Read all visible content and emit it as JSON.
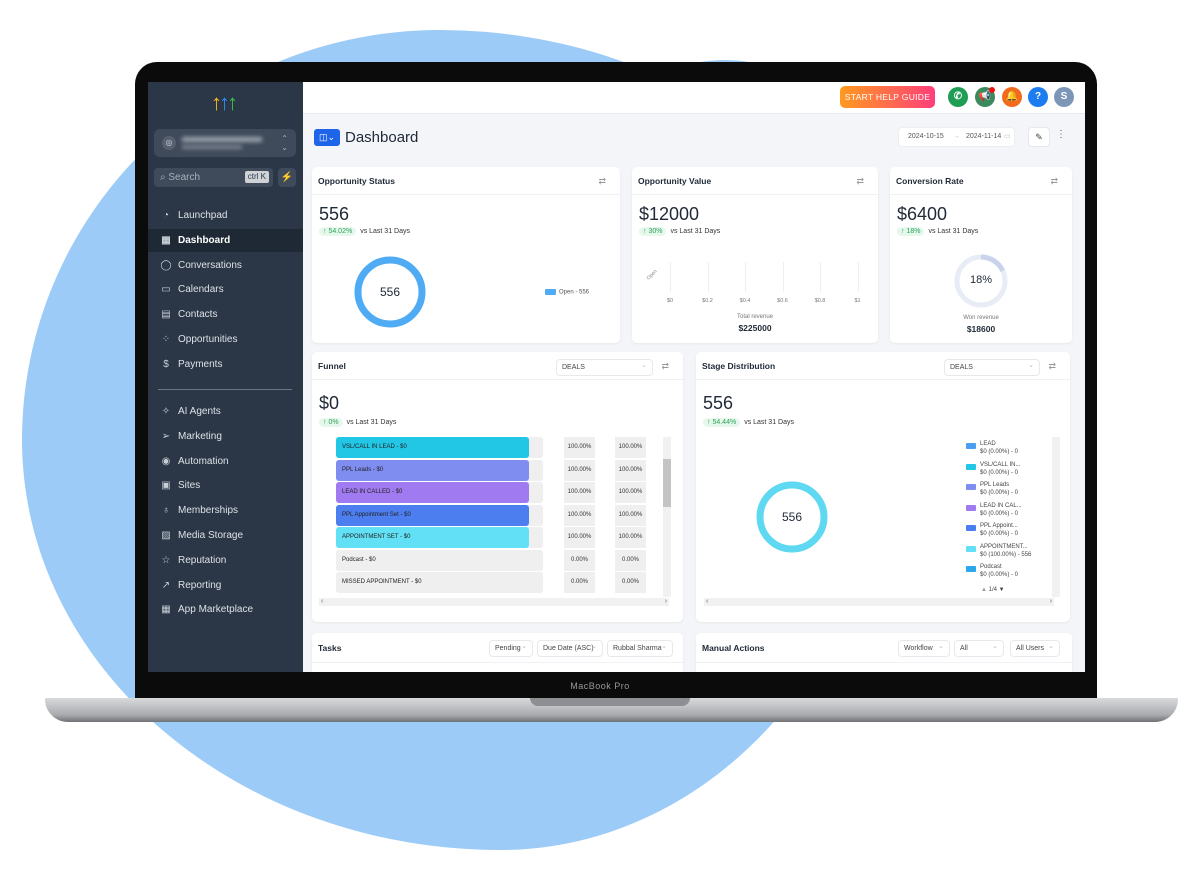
{
  "colors": {
    "accent": "#1d64e8",
    "sidebar": "#2b3646",
    "blob": "#9ccbf8",
    "open": "#4facf4",
    "stage_donut": "#5fd8f2"
  },
  "laptop": {
    "brand": "MacBook Pro"
  },
  "sidebar": {
    "search_placeholder": "Search",
    "search_shortcut": "ctrl K",
    "items": [
      {
        "label": "Launchpad",
        "icon": "rocket-icon",
        "glyph": "◔"
      },
      {
        "label": "Dashboard",
        "icon": "grid-icon",
        "glyph": "▦",
        "active": true
      },
      {
        "label": "Conversations",
        "icon": "chat-icon",
        "glyph": "◯"
      },
      {
        "label": "Calendars",
        "icon": "calendar-icon",
        "glyph": "▭"
      },
      {
        "label": "Contacts",
        "icon": "contacts-icon",
        "glyph": "▤"
      },
      {
        "label": "Opportunities",
        "icon": "opportunities-icon",
        "glyph": "⁘"
      },
      {
        "label": "Payments",
        "icon": "payments-icon",
        "glyph": "$"
      }
    ],
    "items2": [
      {
        "label": "AI Agents",
        "icon": "sparkle-icon",
        "glyph": "✧"
      },
      {
        "label": "Marketing",
        "icon": "send-icon",
        "glyph": "➢"
      },
      {
        "label": "Automation",
        "icon": "automation-icon",
        "glyph": "◉"
      },
      {
        "label": "Sites",
        "icon": "sites-icon",
        "glyph": "▣"
      },
      {
        "label": "Memberships",
        "icon": "award-icon",
        "glyph": "♁"
      },
      {
        "label": "Media Storage",
        "icon": "image-icon",
        "glyph": "▨"
      },
      {
        "label": "Reputation",
        "icon": "star-icon",
        "glyph": "☆"
      },
      {
        "label": "Reporting",
        "icon": "trend-icon",
        "glyph": "↗"
      },
      {
        "label": "App Marketplace",
        "icon": "apps-icon",
        "glyph": "▦"
      }
    ]
  },
  "topbar": {
    "help": "START HELP GUIDE",
    "avatar": "S",
    "help_icon": "?"
  },
  "page": {
    "title": "Dashboard",
    "date_from": "2024-10-15",
    "date_to": "2024-11-14"
  },
  "opp_status": {
    "title": "Opportunity Status",
    "value": "556",
    "delta": "↑ 54.02%",
    "vs": "vs Last 31 Days",
    "center": "556",
    "legend": "Open - 556"
  },
  "opp_value": {
    "title": "Opportunity Value",
    "value": "$12000",
    "delta": "↑ 30%",
    "vs": "vs Last 31 Days",
    "ycat": "Open",
    "xticks": [
      "$0",
      "$0.2",
      "$0.4",
      "$0.6",
      "$0.8",
      "$1"
    ],
    "total_label": "Total revenue",
    "total": "$225000"
  },
  "conversion": {
    "title": "Conversion Rate",
    "value": "$6400",
    "delta": "↑ 18%",
    "vs": "vs Last 31 Days",
    "center": "18%",
    "percent": 18,
    "won_label": "Won revenue",
    "won": "$18600"
  },
  "funnel": {
    "title": "Funnel",
    "select": "DEALS",
    "value": "$0",
    "delta": "↑ 0%",
    "vs": "vs Last 31 Days",
    "rows": [
      {
        "label": "VSL/CALL IN LEAD - $0",
        "p1": "100.00%",
        "p2": "100.00%",
        "color": "#22c7e6",
        "fill": 93
      },
      {
        "label": "PPL Leads - $0",
        "p1": "100.00%",
        "p2": "100.00%",
        "color": "#7f8cf0",
        "fill": 93
      },
      {
        "label": "LEAD IN CALLED - $0",
        "p1": "100.00%",
        "p2": "100.00%",
        "color": "#a07af0",
        "fill": 93
      },
      {
        "label": "PPL Appointment Set - $0",
        "p1": "100.00%",
        "p2": "100.00%",
        "color": "#4c7ef0",
        "fill": 93
      },
      {
        "label": "APPOINTMENT SET - $0",
        "p1": "100.00%",
        "p2": "100.00%",
        "color": "#62e0f5",
        "fill": 93
      },
      {
        "label": "Podcast - $0",
        "p1": "0.00%",
        "p2": "0.00%",
        "color": "#efefef",
        "fill": 0
      },
      {
        "label": "MISSED APPOINTMENT - $0",
        "p1": "0.00%",
        "p2": "0.00%",
        "color": "#efefef",
        "fill": 0
      }
    ]
  },
  "stage": {
    "title": "Stage Distribution",
    "select": "DEALS",
    "value": "556",
    "delta": "↑ 54.44%",
    "vs": "vs Last 31 Days",
    "center": "556",
    "pager": "1/4",
    "legend": [
      {
        "name": "LEAD",
        "val": "$0 (0.00%) - 0",
        "color": "#4a9ff0"
      },
      {
        "name": "VSL/CALL IN...",
        "val": "$0 (0.00%) - 0",
        "color": "#22c7e6"
      },
      {
        "name": "PPL Leads",
        "val": "$0 (0.00%) - 0",
        "color": "#7f8cf0"
      },
      {
        "name": "LEAD IN CAL...",
        "val": "$0 (0.00%) - 0",
        "color": "#a07af0"
      },
      {
        "name": "PPL Appoint...",
        "val": "$0 (0.00%) - 0",
        "color": "#4c7ef0"
      },
      {
        "name": "APPOINTMENT...",
        "val": "$0 (100.00%) - 556",
        "color": "#62e0f5"
      },
      {
        "name": "Podcast",
        "val": "$0 (0.00%) - 0",
        "color": "#2aa8ee"
      }
    ]
  },
  "tasks": {
    "title": "Tasks",
    "filters": [
      "Pending",
      "Due Date (ASC)",
      "Rubbal Sharma"
    ]
  },
  "manual": {
    "title": "Manual Actions",
    "filters": [
      "Workflow",
      "All",
      "All Users"
    ]
  }
}
